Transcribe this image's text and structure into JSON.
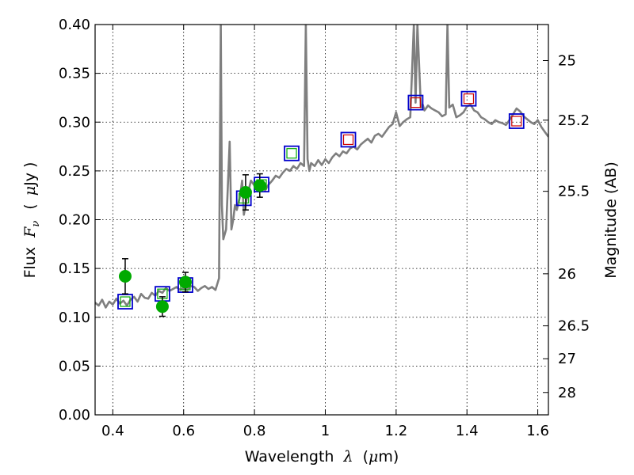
{
  "chart_data": {
    "type": "scatter",
    "xlabel_text": "Wavelength",
    "xlabel_symbol": "λ",
    "xlabel_unit_open": "(",
    "xlabel_unit_mu": "μ",
    "xlabel_unit_rest": "m)",
    "ylabel_text": "Flux",
    "ylabel_symbol": "F",
    "ylabel_subscript": "ν",
    "ylabel_unit_open": "(",
    "ylabel_unit_mu": "μ",
    "ylabel_unit_rest": "Jy )",
    "y2label": "Magnitude (AB)",
    "xlim": [
      0.35,
      1.63
    ],
    "ylim": [
      0.0,
      0.4
    ],
    "grid": true,
    "xticks": [
      0.4,
      0.6,
      0.8,
      1.0,
      1.2,
      1.4,
      1.6
    ],
    "xtick_labels": [
      "0.4",
      "0.6",
      "0.8",
      "1",
      "1.2",
      "1.4",
      "1.6"
    ],
    "yticks": [
      0.0,
      0.05,
      0.1,
      0.15,
      0.2,
      0.25,
      0.3,
      0.35,
      0.4
    ],
    "ytick_labels": [
      "0.00",
      "0.05",
      "0.10",
      "0.15",
      "0.20",
      "0.25",
      "0.30",
      "0.35",
      "0.40"
    ],
    "mag_ticks": [
      25,
      25.2,
      25.5,
      26,
      26.5,
      27,
      28
    ],
    "mag_tick_labels": [
      "25",
      "25.2",
      "25.5",
      "26",
      "26.5",
      "27",
      "28"
    ],
    "colors": {
      "spectrum": "#7f7f7f",
      "observed": "#00aa00",
      "model_box": "#0000cc",
      "optical_inner": "#00aa00",
      "nir_inner": "#cc0000"
    },
    "series": [
      {
        "name": "model spectrum",
        "kind": "line",
        "x": [
          0.35,
          0.36,
          0.37,
          0.38,
          0.39,
          0.4,
          0.41,
          0.42,
          0.43,
          0.44,
          0.45,
          0.46,
          0.47,
          0.48,
          0.49,
          0.5,
          0.51,
          0.52,
          0.53,
          0.54,
          0.55,
          0.56,
          0.57,
          0.58,
          0.59,
          0.6,
          0.61,
          0.62,
          0.63,
          0.64,
          0.65,
          0.66,
          0.67,
          0.68,
          0.69,
          0.7,
          0.705,
          0.708,
          0.712,
          0.72,
          0.73,
          0.735,
          0.74,
          0.745,
          0.75,
          0.76,
          0.765,
          0.77,
          0.78,
          0.79,
          0.8,
          0.81,
          0.82,
          0.83,
          0.84,
          0.85,
          0.86,
          0.87,
          0.88,
          0.89,
          0.9,
          0.91,
          0.92,
          0.93,
          0.94,
          0.945,
          0.95,
          0.955,
          0.96,
          0.97,
          0.98,
          0.99,
          1.0,
          1.01,
          1.02,
          1.03,
          1.04,
          1.05,
          1.06,
          1.07,
          1.08,
          1.09,
          1.1,
          1.11,
          1.12,
          1.13,
          1.14,
          1.15,
          1.16,
          1.17,
          1.18,
          1.19,
          1.2,
          1.21,
          1.22,
          1.23,
          1.24,
          1.25,
          1.255,
          1.26,
          1.27,
          1.275,
          1.28,
          1.29,
          1.3,
          1.31,
          1.32,
          1.33,
          1.34,
          1.345,
          1.35,
          1.36,
          1.37,
          1.38,
          1.39,
          1.4,
          1.41,
          1.42,
          1.43,
          1.44,
          1.45,
          1.46,
          1.47,
          1.48,
          1.49,
          1.5,
          1.51,
          1.52,
          1.53,
          1.54,
          1.55,
          1.56,
          1.57,
          1.58,
          1.59,
          1.6,
          1.61,
          1.62,
          1.63
        ],
        "y": [
          0.115,
          0.112,
          0.118,
          0.11,
          0.116,
          0.113,
          0.119,
          0.114,
          0.117,
          0.112,
          0.118,
          0.121,
          0.116,
          0.124,
          0.12,
          0.119,
          0.125,
          0.122,
          0.127,
          0.125,
          0.13,
          0.127,
          0.129,
          0.131,
          0.128,
          0.13,
          0.128,
          0.132,
          0.131,
          0.127,
          0.13,
          0.132,
          0.129,
          0.131,
          0.128,
          0.14,
          0.4,
          0.215,
          0.18,
          0.19,
          0.28,
          0.19,
          0.2,
          0.215,
          0.21,
          0.225,
          0.24,
          0.205,
          0.225,
          0.24,
          0.235,
          0.24,
          0.238,
          0.23,
          0.236,
          0.24,
          0.245,
          0.243,
          0.248,
          0.252,
          0.25,
          0.255,
          0.252,
          0.258,
          0.255,
          0.4,
          0.262,
          0.25,
          0.258,
          0.255,
          0.261,
          0.256,
          0.262,
          0.258,
          0.264,
          0.268,
          0.265,
          0.27,
          0.268,
          0.273,
          0.275,
          0.272,
          0.277,
          0.28,
          0.283,
          0.279,
          0.286,
          0.288,
          0.285,
          0.29,
          0.295,
          0.298,
          0.31,
          0.296,
          0.3,
          0.303,
          0.305,
          0.4,
          0.32,
          0.4,
          0.315,
          0.318,
          0.312,
          0.317,
          0.314,
          0.312,
          0.31,
          0.306,
          0.308,
          0.4,
          0.315,
          0.318,
          0.305,
          0.307,
          0.31,
          0.316,
          0.318,
          0.312,
          0.31,
          0.305,
          0.303,
          0.3,
          0.298,
          0.302,
          0.3,
          0.299,
          0.297,
          0.302,
          0.308,
          0.314,
          0.311,
          0.306,
          0.303,
          0.3,
          0.298,
          0.302,
          0.295,
          0.29,
          0.285
        ]
      },
      {
        "name": "observed photometry",
        "kind": "points",
        "x": [
          0.435,
          0.54,
          0.605,
          0.775,
          0.815
        ],
        "y": [
          0.142,
          0.111,
          0.136,
          0.228,
          0.235
        ],
        "yerr": [
          0.018,
          0.01,
          0.01,
          0.018,
          0.012
        ]
      },
      {
        "name": "model photometry (optical)",
        "kind": "boxes",
        "x": [
          0.435,
          0.54,
          0.605,
          0.77,
          0.82,
          0.905
        ],
        "y": [
          0.116,
          0.124,
          0.133,
          0.222,
          0.236,
          0.268
        ]
      },
      {
        "name": "model photometry (near-IR)",
        "kind": "boxes",
        "x": [
          1.065,
          1.255,
          1.405,
          1.54
        ],
        "y": [
          0.282,
          0.32,
          0.324,
          0.301
        ]
      }
    ]
  }
}
